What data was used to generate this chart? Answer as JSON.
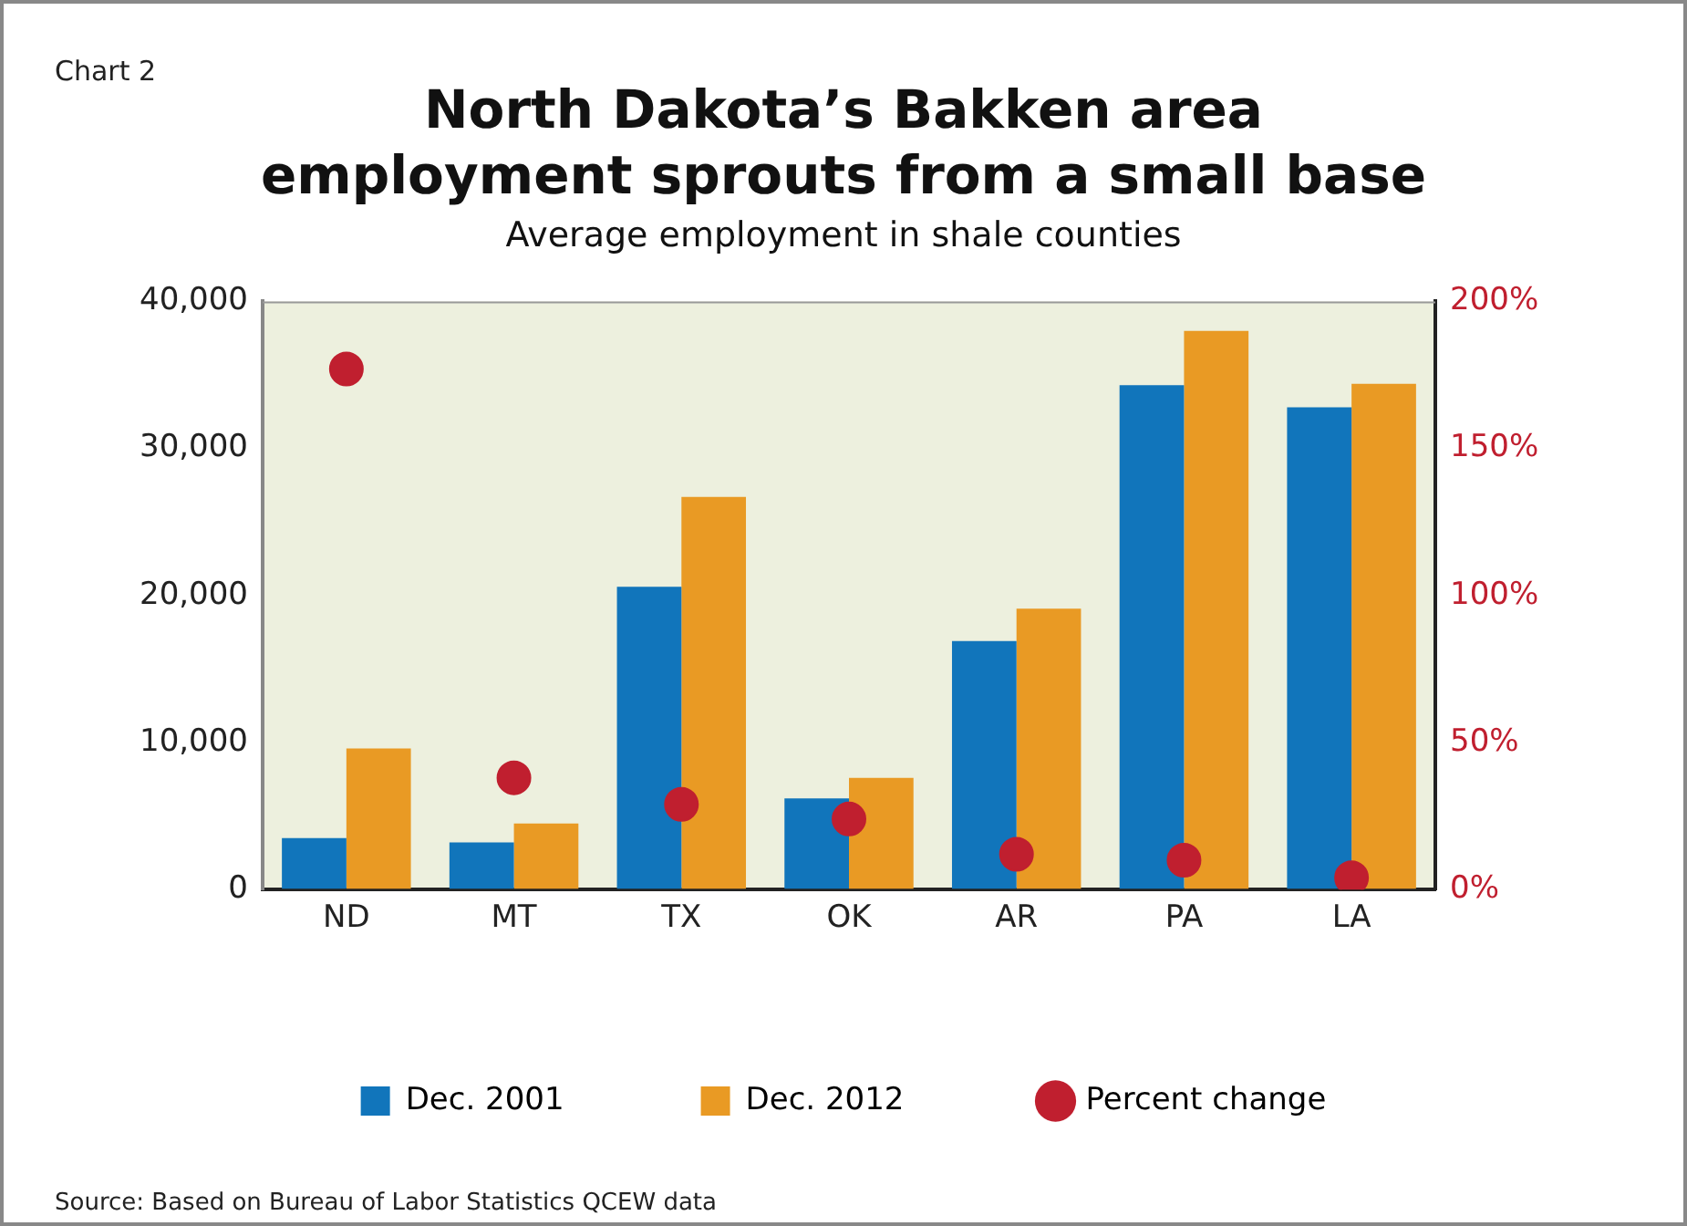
{
  "chart_data": {
    "type": "bar",
    "title": "North Dakota’s Bakken area\nemployment sprouts from a small base",
    "subtitle": "Average employment in shale counties",
    "annotations": [
      "Chart 2",
      "Source: Based on Bureau of Labor Statistics QCEW data"
    ],
    "categories": [
      "ND",
      "MT",
      "TX",
      "OK",
      "AR",
      "PA",
      "LA"
    ],
    "series": [
      {
        "name": "Dec. 2001",
        "color": "#1175bb",
        "values": [
          3500,
          3200,
          20600,
          6200,
          16900,
          34300,
          32800
        ]
      },
      {
        "name": "Dec. 2012",
        "color": "#e99a24",
        "values": [
          9600,
          4500,
          26700,
          7600,
          19100,
          38000,
          34400
        ]
      },
      {
        "name": "Percent change",
        "type": "scatter",
        "axis": "y2",
        "color": "#c01f2f",
        "x": [
          "ND",
          "MT",
          "TX",
          "OK",
          "AR",
          "PA",
          "LA"
        ],
        "values": [
          177,
          38,
          29,
          24,
          12,
          10,
          4
        ]
      }
    ],
    "ylim": [
      0,
      40000
    ],
    "yticks": [
      0,
      {
        "value": 10000,
        "label": "10,000"
      },
      {
        "value": 20000,
        "label": "20,000"
      },
      {
        "value": 30000,
        "label": "30,000"
      },
      {
        "value": 40000,
        "label": "40,000"
      }
    ],
    "y2lim": [
      0,
      200
    ],
    "y2ticks": [
      {
        "value": 0,
        "label": "0%"
      },
      {
        "value": 50,
        "label": "50%"
      },
      {
        "value": 100,
        "label": "100%"
      },
      {
        "value": 150,
        "label": "150%"
      },
      {
        "value": 200,
        "label": "200%"
      }
    ],
    "grid": false,
    "legend": "bottom",
    "marker": "circle"
  }
}
